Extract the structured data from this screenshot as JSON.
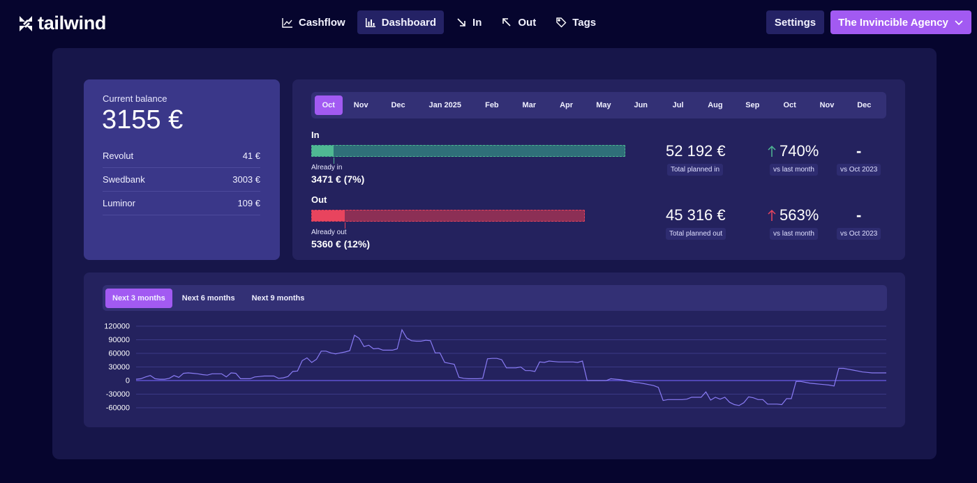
{
  "header": {
    "logo_text": "tailwind",
    "nav": [
      {
        "label": "Cashflow",
        "icon": "chart-line-icon",
        "active": false
      },
      {
        "label": "Dashboard",
        "icon": "bar-chart-icon",
        "active": true
      },
      {
        "label": "In",
        "icon": "arrow-down-right-icon",
        "active": false
      },
      {
        "label": "Out",
        "icon": "arrow-up-left-icon",
        "active": false
      },
      {
        "label": "Tags",
        "icon": "tag-icon",
        "active": false
      }
    ],
    "settings_label": "Settings",
    "agency_label": "The Invincible Agency"
  },
  "balance": {
    "label": "Current balance",
    "value": "3155 €",
    "accounts": [
      {
        "name": "Revolut",
        "amount": "41 €"
      },
      {
        "name": "Swedbank",
        "amount": "3003 €"
      },
      {
        "name": "Luminor",
        "amount": "109 €"
      }
    ]
  },
  "months": [
    "Oct",
    "Nov",
    "Dec",
    "Jan 2025",
    "Feb",
    "Mar",
    "Apr",
    "May",
    "Jun",
    "Jul",
    "Aug",
    "Sep",
    "Oct",
    "Nov",
    "Dec"
  ],
  "active_month_index": 0,
  "in": {
    "label": "In",
    "already_label": "Already in",
    "already_value": "3471 € (7%)",
    "progress": 0.07,
    "total": "52 192 €",
    "total_label": "Total planned in",
    "change": "740%",
    "change_label": "vs last month",
    "yoy": "-",
    "yoy_label": "vs Oct 2023"
  },
  "out": {
    "label": "Out",
    "already_label": "Already out",
    "already_value": "5360 € (12%)",
    "progress": 0.12,
    "total": "45 316 €",
    "total_label": "Total planned out",
    "change": "563%",
    "change_label": "vs last month",
    "yoy": "-",
    "yoy_label": "vs Oct 2023"
  },
  "colors": {
    "accent": "#a25af2",
    "in_fill": "#4fb893",
    "in_bg": "#2f6f79",
    "out_fill": "#e8445e",
    "out_bg": "#8c2f55",
    "up_green": "#4fb893",
    "up_red": "#e8445e",
    "line": "#8a7cf5"
  },
  "ranges": [
    "Next 3 months",
    "Next 6 months",
    "Next 9 months"
  ],
  "active_range_index": 0,
  "chart_data": {
    "type": "line",
    "yticks": [
      120000,
      90000,
      60000,
      30000,
      0,
      -30000,
      -60000
    ],
    "ylim": [
      -60000,
      120000
    ],
    "grid": true,
    "values": [
      3000,
      4000,
      8000,
      11000,
      4000,
      3000,
      3000,
      5000,
      11000,
      7000,
      16000,
      17000,
      16000,
      15000,
      13000,
      12000,
      15000,
      15000,
      15000,
      8000,
      17000,
      16000,
      4000,
      4000,
      4000,
      8000,
      9000,
      10000,
      10000,
      10000,
      5000,
      6000,
      9000,
      20000,
      21000,
      44000,
      50000,
      40000,
      47000,
      65000,
      65000,
      61000,
      59000,
      61000,
      63000,
      66000,
      100000,
      93000,
      75000,
      78000,
      70000,
      71000,
      67000,
      67000,
      67000,
      70000,
      112000,
      94000,
      88000,
      87000,
      87000,
      89000,
      88000,
      61000,
      61000,
      40000,
      38000,
      36000,
      7000,
      5000,
      4000,
      4000,
      4000,
      5000,
      48000,
      49000,
      49000,
      46000,
      28000,
      28000,
      28000,
      30000,
      22000,
      22000,
      20000,
      41000,
      40000,
      43000,
      42000,
      41000,
      41000,
      41000,
      41000,
      40000,
      43000,
      0,
      0,
      0,
      0,
      0,
      4000,
      3000,
      2000,
      0,
      -2000,
      -4000,
      -5000,
      -7000,
      -9000,
      -11000,
      -15000,
      -44000,
      -42000,
      -42000,
      -42000,
      -42000,
      -41000,
      -37000,
      -37000,
      -37000,
      -25000,
      -43000,
      -37000,
      -41000,
      -37000,
      -48000,
      -53000,
      -55000,
      -49000,
      -36000,
      -38000,
      -42000,
      -42000,
      -52000,
      -52000,
      -52000,
      -53000,
      -40000,
      -40000,
      -2000,
      -2000,
      -4000,
      -6000,
      -7000,
      -8000,
      -9000,
      -10000,
      -12000,
      27000,
      27000,
      25000,
      23000,
      21000,
      19000,
      18000,
      17000,
      17000,
      17000,
      17000
    ]
  }
}
